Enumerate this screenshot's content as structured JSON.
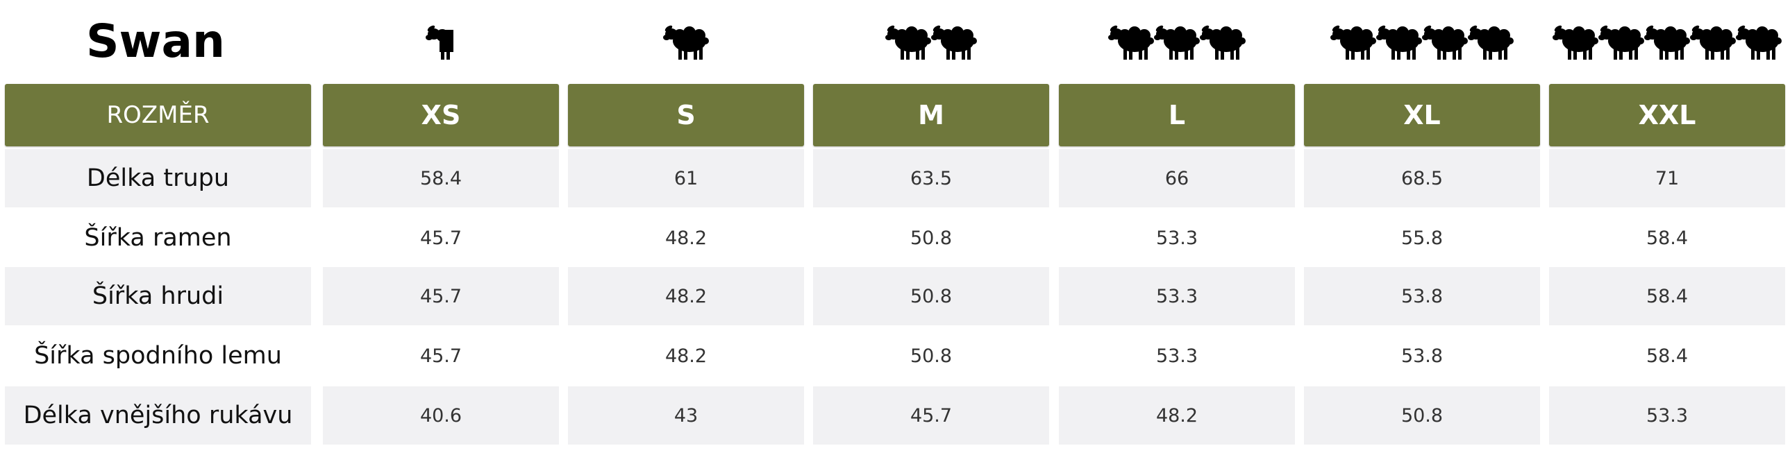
{
  "title": "Swan",
  "header": {
    "label": "ROZMĚR",
    "sizes": [
      "XS",
      "S",
      "M",
      "L",
      "XL",
      "XXL"
    ]
  },
  "size_icons": [
    {
      "name": "half-sheep-icon",
      "count": 1
    },
    {
      "name": "sheep-icon",
      "count": 1
    },
    {
      "name": "sheep-icon",
      "count": 2
    },
    {
      "name": "sheep-icon",
      "count": 3
    },
    {
      "name": "sheep-icon",
      "count": 4
    },
    {
      "name": "sheep-icon",
      "count": 5
    }
  ],
  "rows": [
    {
      "label": "Délka trupu",
      "values": [
        "58.4",
        "61",
        "63.5",
        "66",
        "68.5",
        "71"
      ]
    },
    {
      "label": "Šířka ramen",
      "values": [
        "45.7",
        "48.2",
        "50.8",
        "53.3",
        "55.8",
        "58.4"
      ]
    },
    {
      "label": "Šířka hrudi",
      "values": [
        "45.7",
        "48.2",
        "50.8",
        "53.3",
        "53.8",
        "58.4"
      ]
    },
    {
      "label": "Šířka spodního lemu",
      "values": [
        "45.7",
        "48.2",
        "50.8",
        "53.3",
        "53.8",
        "58.4"
      ]
    },
    {
      "label": "Délka vnějšího rukávu",
      "values": [
        "40.6",
        "43",
        "45.7",
        "48.2",
        "50.8",
        "53.3"
      ]
    }
  ],
  "colors": {
    "header_green": "#6f783c",
    "row_shade": "#f1f1f3",
    "icon": "#000000"
  }
}
